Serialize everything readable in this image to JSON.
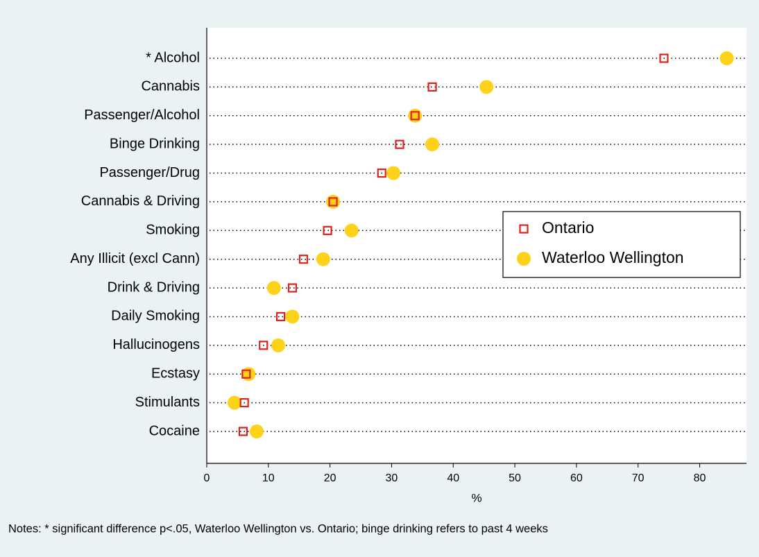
{
  "chart_data": {
    "type": "dot",
    "categories": [
      "* Alcohol",
      "Cannabis",
      "Passenger/Alcohol",
      "Binge Drinking",
      "Passenger/Drug",
      "Cannabis & Driving",
      "Smoking",
      "Any Illicit (excl Cann)",
      "Drink & Driving",
      "Daily Smoking",
      "Hallucinogens",
      "Ecstasy",
      "Stimulants",
      "Cocaine"
    ],
    "series": [
      {
        "name": "Ontario",
        "color": "#e0201b",
        "marker": "square",
        "values": [
          74.2,
          36.6,
          33.8,
          31.3,
          28.4,
          20.5,
          19.6,
          15.7,
          13.9,
          12.0,
          9.2,
          6.4,
          6.1,
          5.9
        ]
      },
      {
        "name": "Waterloo Wellington",
        "color": "#ffd21a",
        "marker": "circle",
        "values": [
          84.4,
          45.4,
          33.8,
          36.6,
          30.3,
          20.5,
          23.5,
          18.9,
          10.9,
          13.9,
          11.6,
          6.8,
          4.5,
          8.1
        ]
      }
    ],
    "xlabel": "%",
    "xlim": [
      0,
      87.6
    ],
    "xticks": [
      0,
      10,
      20,
      30,
      40,
      50,
      60,
      70,
      80
    ],
    "legend": "right",
    "note": "Notes: * significant difference p<.05, Waterloo Wellington vs. Ontario; binge drinking refers to past 4 weeks"
  }
}
